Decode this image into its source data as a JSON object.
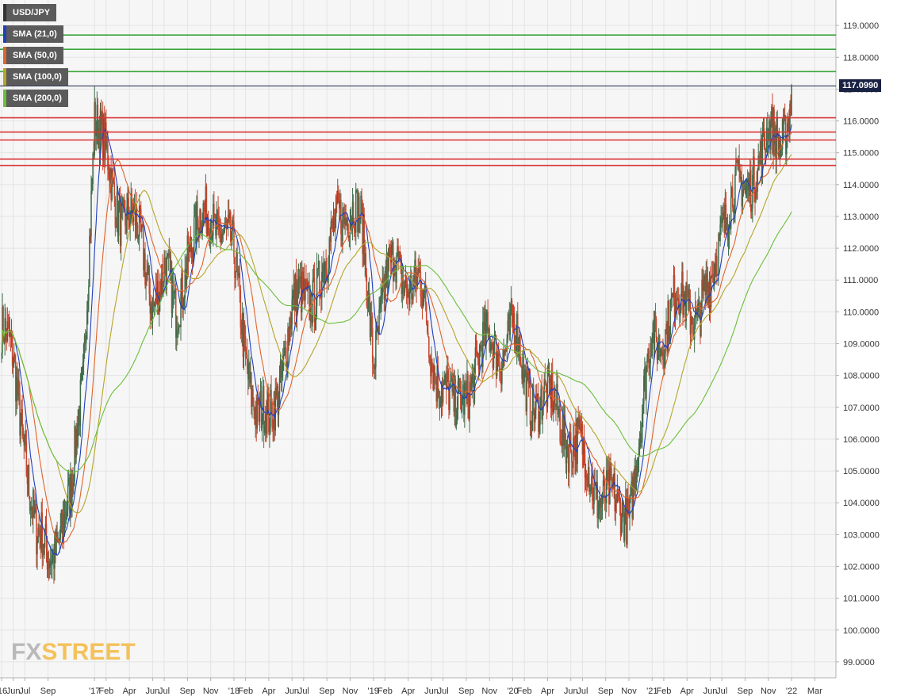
{
  "chart_data": {
    "type": "candlestick",
    "symbol": "USD/JPY",
    "ylim": [
      98.5,
      119.8
    ],
    "y_ticks": [
      "119.0000",
      "118.0000",
      "117.0000",
      "116.0000",
      "115.0000",
      "114.0000",
      "113.0000",
      "112.0000",
      "111.0000",
      "110.0000",
      "109.0000",
      "108.0000",
      "107.0000",
      "106.0000",
      "105.0000",
      "104.0000",
      "103.0000",
      "102.0000",
      "101.0000",
      "100.0000",
      "99.0000"
    ],
    "y_tick_values": [
      119,
      118,
      117,
      116,
      115,
      114,
      113,
      112,
      111,
      110,
      109,
      108,
      107,
      106,
      105,
      104,
      103,
      102,
      101,
      100,
      99
    ],
    "x_ticks": [
      "'16",
      "Jun",
      "Jul",
      "Sep",
      "'17",
      "Feb",
      "Apr",
      "Jun",
      "Jul",
      "Sep",
      "Nov",
      "'18",
      "Feb",
      "Apr",
      "Jun",
      "Jul",
      "Sep",
      "Nov",
      "'19",
      "Feb",
      "Apr",
      "Jun",
      "Jul",
      "Sep",
      "Nov",
      "'20",
      "Feb",
      "Apr",
      "Jun",
      "Jul",
      "Sep",
      "Nov",
      "'21",
      "Feb",
      "Apr",
      "Jun",
      "Jul",
      "Sep",
      "Nov",
      "'22",
      "Mar"
    ],
    "x_tick_months": [
      0,
      1,
      2,
      4,
      8,
      9,
      11,
      13,
      14,
      16,
      18,
      20,
      21,
      23,
      25,
      26,
      28,
      30,
      32,
      33,
      35,
      37,
      38,
      40,
      42,
      44,
      45,
      47,
      49,
      50,
      52,
      54,
      56,
      57,
      59,
      61,
      62,
      64,
      66,
      68,
      70
    ],
    "x_range_months": [
      0,
      71.0
    ],
    "last_price": "117.0990",
    "last_price_value": 117.099,
    "horizontal_levels": [
      {
        "value": 118.7,
        "color": "#3aa53a"
      },
      {
        "value": 118.25,
        "color": "#3aa53a"
      },
      {
        "value": 117.55,
        "color": "#3aa53a"
      },
      {
        "value": 116.1,
        "color": "#d93535"
      },
      {
        "value": 115.65,
        "color": "#d93535"
      },
      {
        "value": 115.4,
        "color": "#d93535"
      },
      {
        "value": 114.8,
        "color": "#d93535"
      },
      {
        "value": 114.6,
        "color": "#d93535"
      }
    ],
    "price_path": [
      [
        0,
        109.5
      ],
      [
        1,
        108.2
      ],
      [
        2,
        106.0
      ],
      [
        3,
        102.8
      ],
      [
        4,
        102.2
      ],
      [
        5,
        103.3
      ],
      [
        6,
        104.0
      ],
      [
        7,
        108.0
      ],
      [
        8,
        116.2
      ],
      [
        9,
        114.6
      ],
      [
        10,
        113.4
      ],
      [
        11,
        113.0
      ],
      [
        12,
        112.0
      ],
      [
        13,
        110.6
      ],
      [
        14,
        111.1
      ],
      [
        15,
        109.9
      ],
      [
        16,
        112.0
      ],
      [
        17,
        112.5
      ],
      [
        18,
        113.3
      ],
      [
        19,
        112.6
      ],
      [
        20,
        111.5
      ],
      [
        21,
        109.0
      ],
      [
        22,
        106.5
      ],
      [
        23,
        106.5
      ],
      [
        24,
        108.2
      ],
      [
        25,
        109.8
      ],
      [
        26,
        110.6
      ],
      [
        27,
        110.8
      ],
      [
        28,
        111.2
      ],
      [
        29,
        113.5
      ],
      [
        30,
        113.2
      ],
      [
        31,
        112.5
      ],
      [
        32,
        108.9
      ],
      [
        33,
        110.7
      ],
      [
        34,
        111.5
      ],
      [
        35,
        111.1
      ],
      [
        36,
        110.7
      ],
      [
        37,
        108.6
      ],
      [
        38,
        107.9
      ],
      [
        39,
        106.6
      ],
      [
        40,
        107.7
      ],
      [
        41,
        108.5
      ],
      [
        42,
        108.9
      ],
      [
        43,
        108.9
      ],
      [
        44,
        109.5
      ],
      [
        45,
        107.8
      ],
      [
        46,
        107.3
      ],
      [
        47,
        107.1
      ],
      [
        48,
        106.9
      ],
      [
        49,
        105.9
      ],
      [
        50,
        105.4
      ],
      [
        51,
        104.7
      ],
      [
        52,
        104.1
      ],
      [
        53,
        103.7
      ],
      [
        54,
        104.0
      ],
      [
        55,
        106.0
      ],
      [
        56,
        109.5
      ],
      [
        57,
        109.4
      ],
      [
        58,
        110.1
      ],
      [
        59,
        110.5
      ],
      [
        60,
        109.9
      ],
      [
        61,
        110.5
      ],
      [
        62,
        113.0
      ],
      [
        63,
        113.7
      ],
      [
        64,
        113.5
      ],
      [
        65,
        115.0
      ],
      [
        66,
        115.3
      ],
      [
        67,
        115.2
      ],
      [
        68,
        117.1
      ]
    ],
    "series": [
      {
        "name": "SMA (21,0)",
        "color": "#1f3fbf"
      },
      {
        "name": "SMA (50,0)",
        "color": "#e0642b"
      },
      {
        "name": "SMA (100,0)",
        "color": "#b5a42a"
      },
      {
        "name": "SMA (200,0)",
        "color": "#6abf3a"
      }
    ],
    "grid": true
  },
  "legend": {
    "symbol": "USD/JPY",
    "sma21": "SMA (21,0)",
    "sma50": "SMA (50,0)",
    "sma100": "SMA (100,0)",
    "sma200": "SMA (200,0)"
  },
  "logo": {
    "fx": "FX",
    "street": "STREET"
  },
  "colors": {
    "bull": "#3f6b4a",
    "bear": "#c4462e",
    "price_line": "#1a2244"
  }
}
